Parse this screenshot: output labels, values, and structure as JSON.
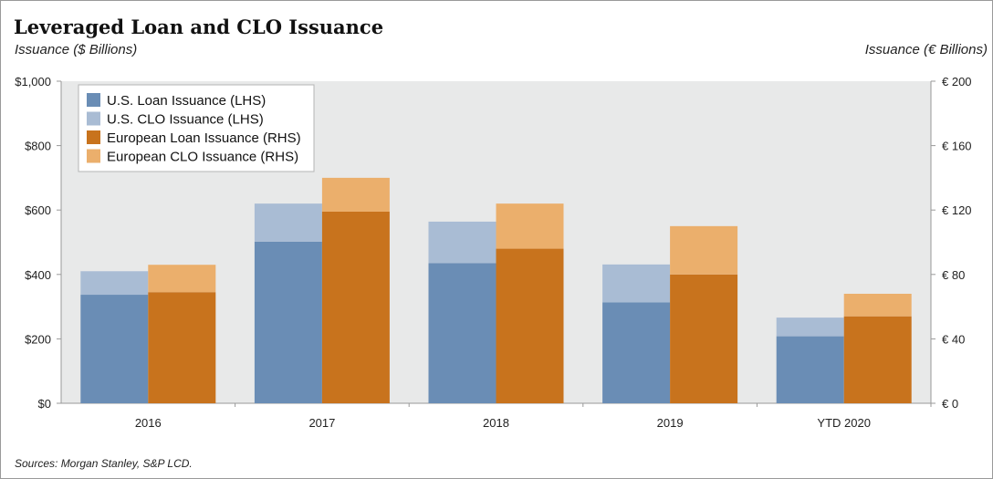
{
  "title": "Leveraged Loan and CLO Issuance",
  "left_axis_title": "Issuance ($ Billions)",
  "right_axis_title": "Issuance (€ Billions)",
  "source": "Sources: Morgan Stanley, S&P LCD.",
  "colors": {
    "us_loan": "#6a8db5",
    "us_clo": "#a9bcd4",
    "eu_loan": "#c8731d",
    "eu_clo": "#ebaf6c",
    "plot_bg": "#e8e9e9",
    "axis": "#999999"
  },
  "chart_data": {
    "type": "bar",
    "stacked": true,
    "categories": [
      "2016",
      "2017",
      "2018",
      "2019",
      "YTD 2020"
    ],
    "left_axis": {
      "label": "Issuance ($ Billions)",
      "ylim": [
        0,
        1000
      ],
      "ticks": [
        0,
        200,
        400,
        600,
        800,
        1000
      ],
      "tick_labels": [
        "$0",
        "$200",
        "$400",
        "$600",
        "$800",
        "$1,000"
      ]
    },
    "right_axis": {
      "label": "Issuance (€ Billions)",
      "ylim": [
        0,
        200
      ],
      "ticks": [
        0,
        40,
        80,
        120,
        160,
        200
      ],
      "tick_labels": [
        "€ 0",
        "€ 40",
        "€ 80",
        "€ 120",
        "€ 160",
        "€ 200"
      ]
    },
    "series": [
      {
        "name": "U.S. Loan Issuance (LHS)",
        "axis": "left",
        "stack": "us",
        "color_key": "us_loan",
        "values": [
          337,
          502,
          435,
          313,
          208
        ]
      },
      {
        "name": "U.S. CLO Issuance (LHS)",
        "axis": "left",
        "stack": "us",
        "color_key": "us_clo",
        "values": [
          73,
          118,
          129,
          118,
          58
        ]
      },
      {
        "name": "European Loan Issuance (RHS)",
        "axis": "right",
        "stack": "eu",
        "color_key": "eu_loan",
        "values": [
          69,
          119,
          96,
          80,
          54
        ]
      },
      {
        "name": "European CLO Issuance (RHS)",
        "axis": "right",
        "stack": "eu",
        "color_key": "eu_clo",
        "values": [
          17,
          21,
          28,
          30,
          14
        ]
      }
    ],
    "legend_position": "top-left",
    "grid": false
  }
}
